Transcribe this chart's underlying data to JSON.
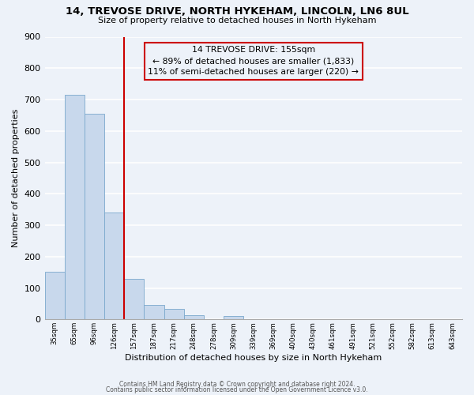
{
  "title": "14, TREVOSE DRIVE, NORTH HYKEHAM, LINCOLN, LN6 8UL",
  "subtitle": "Size of property relative to detached houses in North Hykeham",
  "xlabel": "Distribution of detached houses by size in North Hykeham",
  "ylabel": "Number of detached properties",
  "bar_color": "#c8d8ec",
  "bar_edge_color": "#7aa8cc",
  "bar_values": [
    152,
    715,
    655,
    340,
    130,
    45,
    33,
    13,
    0,
    10,
    0,
    0,
    0,
    0,
    0,
    0,
    0,
    0,
    0,
    0,
    0
  ],
  "bin_labels": [
    "35sqm",
    "65sqm",
    "96sqm",
    "126sqm",
    "157sqm",
    "187sqm",
    "217sqm",
    "248sqm",
    "278sqm",
    "309sqm",
    "339sqm",
    "369sqm",
    "400sqm",
    "430sqm",
    "461sqm",
    "491sqm",
    "521sqm",
    "552sqm",
    "582sqm",
    "613sqm",
    "643sqm"
  ],
  "ylim": [
    0,
    900
  ],
  "yticks": [
    0,
    100,
    200,
    300,
    400,
    500,
    600,
    700,
    800,
    900
  ],
  "vline_x_index": 4,
  "vline_color": "#cc0000",
  "annotation_title": "14 TREVOSE DRIVE: 155sqm",
  "annotation_line1": "← 89% of detached houses are smaller (1,833)",
  "annotation_line2": "11% of semi-detached houses are larger (220) →",
  "annotation_box_edge": "#cc0000",
  "footnote1": "Contains HM Land Registry data © Crown copyright and database right 2024.",
  "footnote2": "Contains public sector information licensed under the Open Government Licence v3.0.",
  "background_color": "#edf2f9",
  "grid_color": "#ffffff"
}
